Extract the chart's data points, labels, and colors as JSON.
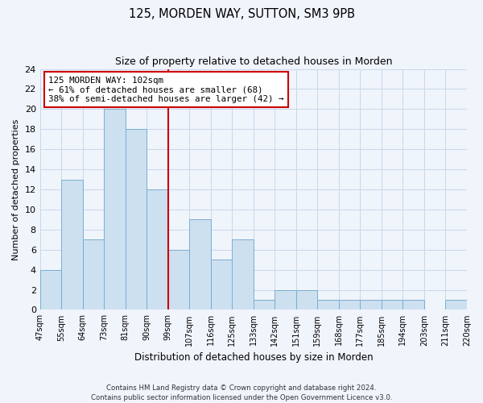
{
  "title": "125, MORDEN WAY, SUTTON, SM3 9PB",
  "subtitle": "Size of property relative to detached houses in Morden",
  "xlabel": "Distribution of detached houses by size in Morden",
  "ylabel": "Number of detached properties",
  "bar_labels": [
    "47sqm",
    "55sqm",
    "64sqm",
    "73sqm",
    "81sqm",
    "90sqm",
    "99sqm",
    "107sqm",
    "116sqm",
    "125sqm",
    "133sqm",
    "142sqm",
    "151sqm",
    "159sqm",
    "168sqm",
    "177sqm",
    "185sqm",
    "194sqm",
    "203sqm",
    "211sqm",
    "220sqm"
  ],
  "bar_values": [
    4,
    13,
    7,
    20,
    18,
    12,
    6,
    9,
    5,
    7,
    1,
    2,
    2,
    1,
    1,
    1,
    1,
    1,
    0,
    1
  ],
  "bar_color": "#cce0f0",
  "bar_edge_color": "#7aaed0",
  "vline_color": "#cc0000",
  "ylim": [
    0,
    24
  ],
  "yticks": [
    0,
    2,
    4,
    6,
    8,
    10,
    12,
    14,
    16,
    18,
    20,
    22,
    24
  ],
  "annotation_text": "125 MORDEN WAY: 102sqm\n← 61% of detached houses are smaller (68)\n38% of semi-detached houses are larger (42) →",
  "annotation_box_color": "#ffffff",
  "annotation_box_edge": "#cc0000",
  "footer_line1": "Contains HM Land Registry data © Crown copyright and database right 2024.",
  "footer_line2": "Contains public sector information licensed under the Open Government Licence v3.0.",
  "background_color": "#f0f4fb",
  "grid_color": "#c8d8ec"
}
